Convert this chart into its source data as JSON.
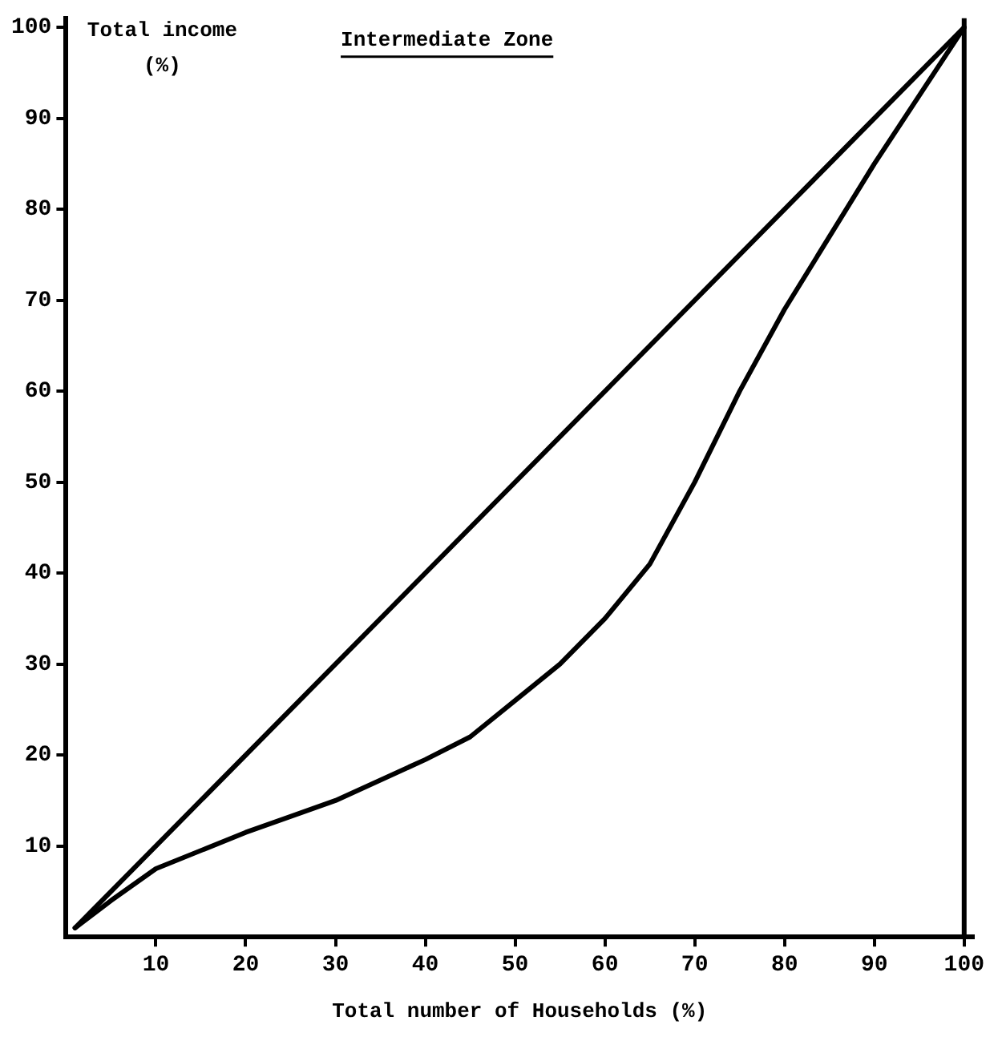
{
  "chart_data": {
    "type": "line",
    "title": "Intermediate Zone",
    "xlabel": "Total number of Households (%)",
    "ylabel": "Total income (%)",
    "series": [
      {
        "color": "#000000",
        "x": [
          1,
          100
        ],
        "values": [
          1,
          100
        ]
      },
      {
        "color": "#000000",
        "x": [
          1,
          5,
          10,
          20,
          30,
          40,
          45,
          50,
          55,
          60,
          65,
          70,
          75,
          80,
          90,
          100
        ],
        "values": [
          1,
          4,
          7.5,
          11.5,
          15,
          19.5,
          22,
          26,
          30,
          35,
          41,
          50,
          60,
          69,
          85,
          100
        ]
      }
    ],
    "xlim": [
      0,
      101
    ],
    "ylim": [
      0,
      101
    ],
    "xticks": [
      10,
      20,
      30,
      40,
      50,
      60,
      70,
      80,
      90,
      100
    ],
    "yticks": [
      10,
      20,
      30,
      40,
      50,
      60,
      70,
      80,
      90,
      100
    ],
    "grid": false,
    "marker": "none",
    "line_style": "solid",
    "ref_lines": [
      {
        "axis": "x",
        "value": 100,
        "color": "#000000"
      }
    ]
  }
}
